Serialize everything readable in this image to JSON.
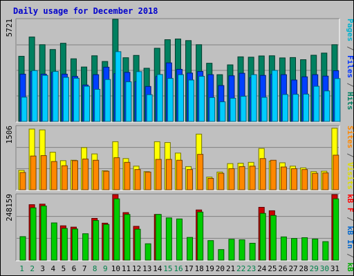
{
  "chart_data": {
    "title": "Daily usage for December 2018",
    "type": "bar",
    "x": [
      "1",
      "2",
      "3",
      "4",
      "5",
      "6",
      "7",
      "8",
      "9",
      "10",
      "11",
      "12",
      "13",
      "14",
      "15",
      "16",
      "17",
      "18",
      "19",
      "20",
      "21",
      "22",
      "23",
      "24",
      "25",
      "26",
      "27",
      "28",
      "29",
      "30",
      "31"
    ],
    "weekend_days": [
      "1",
      "2",
      "8",
      "9",
      "15",
      "16",
      "22",
      "23",
      "29",
      "30"
    ],
    "panels": [
      {
        "id": "top",
        "ymax_label": "5721",
        "ymax": 5721,
        "right_label": [
          {
            "text": "Pages",
            "color": "#00b0cc"
          },
          {
            "text": " / ",
            "color": "#555555"
          },
          {
            "text": "Files",
            "color": "#0033ff"
          },
          {
            "text": " / ",
            "color": "#555555"
          },
          {
            "text": "Hits",
            "color": "#008060"
          }
        ],
        "series": [
          {
            "name": "Hits",
            "color": "#008060",
            "values": [
              3650,
              4730,
              4300,
              4030,
              4380,
              3510,
              3050,
              3680,
              3360,
              5721,
              3570,
              3700,
              2980,
              4100,
              4580,
              4620,
              4530,
              4300,
              3260,
              2620,
              3170,
              3620,
              3600,
              3670,
              3680,
              3560,
              3580,
              3460,
              3710,
              3830,
              4300
            ]
          },
          {
            "name": "Files",
            "color": "#0040ff",
            "values": [
              2650,
              2800,
              2650,
              2750,
              2650,
              2520,
              2040,
              2620,
              3040,
              2680,
              2750,
              2230,
              1960,
              2520,
              3280,
              2920,
              2710,
              2800,
              2620,
              2010,
              2560,
              2700,
              2450,
              2580,
              2640,
              2620,
              2320,
              2500,
              2620,
              2540,
              2840
            ]
          },
          {
            "name": "Pages",
            "color": "#00ccff",
            "values": [
              1360,
              2850,
              2580,
              2800,
              2470,
              2420,
              1970,
              1800,
              2350,
              3910,
              2220,
              2790,
              1500,
              2630,
              2410,
              2620,
              2320,
              2530,
              1340,
              1100,
              1300,
              1410,
              2620,
              1350,
              2860,
              1510,
              1520,
              1530,
              1970,
              1710,
              2400
            ]
          }
        ]
      },
      {
        "id": "mid",
        "ymax_label": "1506",
        "ymax": 1506,
        "right_label": [
          {
            "text": "Sites",
            "color": "#ff8800"
          },
          {
            "text": " / ",
            "color": "#555555"
          },
          {
            "text": "Visits",
            "color": "#dddd00"
          }
        ],
        "series": [
          {
            "name": "Visits",
            "color": "#ffff00",
            "values": [
              460,
              1440,
              1420,
              890,
              690,
              700,
              1000,
              850,
              450,
              1140,
              740,
              560,
              430,
              1140,
              1120,
              870,
              550,
              1320,
              300,
              420,
              620,
              630,
              650,
              980,
              680,
              640,
              560,
              520,
              430,
              440,
              1460
            ]
          },
          {
            "name": "Sites",
            "color": "#ff8800",
            "values": [
              410,
              800,
              810,
              670,
              570,
              690,
              730,
              700,
              440,
              760,
              650,
              480,
              420,
              720,
              720,
              700,
              480,
              840,
              270,
              390,
              500,
              550,
              560,
              740,
              700,
              540,
              500,
              480,
              390,
              400,
              820
            ]
          }
        ]
      },
      {
        "id": "bot",
        "ymax_label": "248159",
        "ymax": 248159,
        "right_label": [
          {
            "text": "kB F",
            "color": "#ff0000"
          },
          {
            "text": " / ",
            "color": "#555555"
          },
          {
            "text": "kB In",
            "color": "#0066cc"
          },
          {
            "text": " / ",
            "color": "#555555"
          },
          {
            "text": "kB Out",
            "color": "#00aa00"
          }
        ],
        "series": [
          {
            "name": "kB F",
            "color": "#cc0000",
            "values": [
              0,
              210000,
              212000,
              0,
              130000,
              125000,
              0,
              158000,
              140000,
              248000,
              180000,
              128000,
              0,
              173000,
              0,
              0,
              0,
              190000,
              0,
              0,
              0,
              0,
              0,
              200000,
              187000,
              0,
              0,
              0,
              0,
              0,
              248000
            ]
          },
          {
            "name": "kB Out",
            "color": "#00cc00",
            "values": [
              89000,
              198000,
              205000,
              141000,
              120000,
              118000,
              100000,
              150000,
              135000,
              232000,
              173000,
              117000,
              62000,
              173000,
              160000,
              156000,
              86000,
              182000,
              74000,
              40000,
              79000,
              77000,
              64000,
              177000,
              169000,
              88000,
              82000,
              85000,
              80000,
              70000,
              232000
            ]
          }
        ]
      }
    ]
  }
}
